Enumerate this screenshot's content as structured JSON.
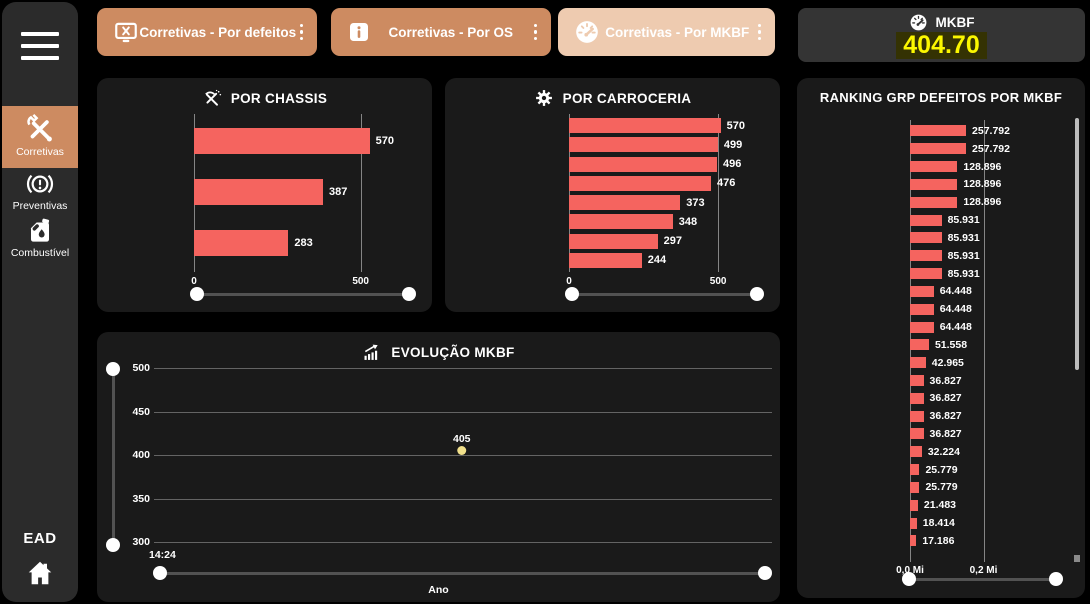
{
  "theme": {
    "page_bg": "#000000",
    "sidebar_bg": "#2b2b2b",
    "panel_bg": "#1a1a1a",
    "accent": "#cd8b61",
    "accent_active": "#eecbb0",
    "bar_color": "#f5645f",
    "kpi_value_color": "#fbf700",
    "kpi_highlight_bg": "#343203",
    "point_color": "#f2e18c"
  },
  "sidebar": {
    "items": [
      {
        "label": "Corretivas",
        "icon": "tools-icon",
        "active": true
      },
      {
        "label": "Preventivas",
        "icon": "brake-warning-icon",
        "active": false
      },
      {
        "label": "Combustível",
        "icon": "fuel-can-icon",
        "active": false
      }
    ],
    "footer_text": "EAD"
  },
  "toolbar": {
    "buttons": [
      {
        "label": "Corretivas - Por defeitos",
        "icon": "monitor-x-icon",
        "active": false
      },
      {
        "label": "Corretivas - Por OS",
        "icon": "info-icon",
        "active": false
      },
      {
        "label": "Corretivas - Por MKBF",
        "icon": "gauge-icon",
        "active": true
      }
    ]
  },
  "kpi": {
    "label": "MKBF",
    "value": "404.70",
    "icon": "gauge-icon"
  },
  "chart_data": [
    {
      "id": "chassis",
      "type": "bar",
      "orientation": "horizontal",
      "title": "POR CHASSIS",
      "icon": "hammer-pick-icon",
      "values": [
        570,
        387,
        283
      ],
      "labels": [
        "570",
        "387",
        "283"
      ],
      "x_ticks": [
        {
          "value": 0,
          "label": "0"
        },
        {
          "value": 500,
          "label": "500"
        }
      ],
      "xlim": [
        0,
        600
      ],
      "grid": true,
      "legend": false
    },
    {
      "id": "carroceria",
      "type": "bar",
      "orientation": "horizontal",
      "title": "POR CARROCERIA",
      "icon": "gear-icon",
      "values": [
        570,
        499,
        496,
        476,
        373,
        348,
        297,
        244
      ],
      "labels": [
        "570",
        "499",
        "496",
        "476",
        "373",
        "348",
        "297",
        "244"
      ],
      "x_ticks": [
        {
          "value": 0,
          "label": "0"
        },
        {
          "value": 500,
          "label": "500"
        }
      ],
      "xlim": [
        0,
        590
      ],
      "grid": true,
      "legend": false
    },
    {
      "id": "evolucao",
      "type": "line",
      "title": "EVOLUÇÃO MKBF",
      "icon": "trend-chart-icon",
      "points": [
        {
          "x_label": "14:24",
          "y": 405,
          "label": "405"
        }
      ],
      "y_ticks": [
        500,
        450,
        400,
        350,
        300
      ],
      "ylim": [
        300,
        500
      ],
      "xlabel": "Ano",
      "grid": true,
      "legend": false
    },
    {
      "id": "ranking",
      "type": "bar",
      "orientation": "horizontal",
      "title": "RANKING GRP DEFEITOS POR MKBF",
      "values": [
        257792,
        257792,
        128896,
        128896,
        128896,
        85931,
        85931,
        85931,
        85931,
        64448,
        64448,
        64448,
        51558,
        42965,
        36827,
        36827,
        36827,
        36827,
        32224,
        25779,
        25779,
        21483,
        18414,
        17186
      ],
      "labels": [
        "257.792",
        "257.792",
        "128.896",
        "128.896",
        "128.896",
        "85.931",
        "85.931",
        "85.931",
        "85.931",
        "64.448",
        "64.448",
        "64.448",
        "51.558",
        "42.965",
        "36.827",
        "36.827",
        "36.827",
        "36.827",
        "32.224",
        "25.779",
        "25.779",
        "21.483",
        "18.414",
        "17.186"
      ],
      "x_ticks": [
        {
          "value": 0,
          "label": "0,0 Mi"
        },
        {
          "value": 200000,
          "label": "0,2 Mi"
        }
      ],
      "xlim": [
        0,
        272000
      ],
      "grid": true,
      "legend": false
    }
  ]
}
